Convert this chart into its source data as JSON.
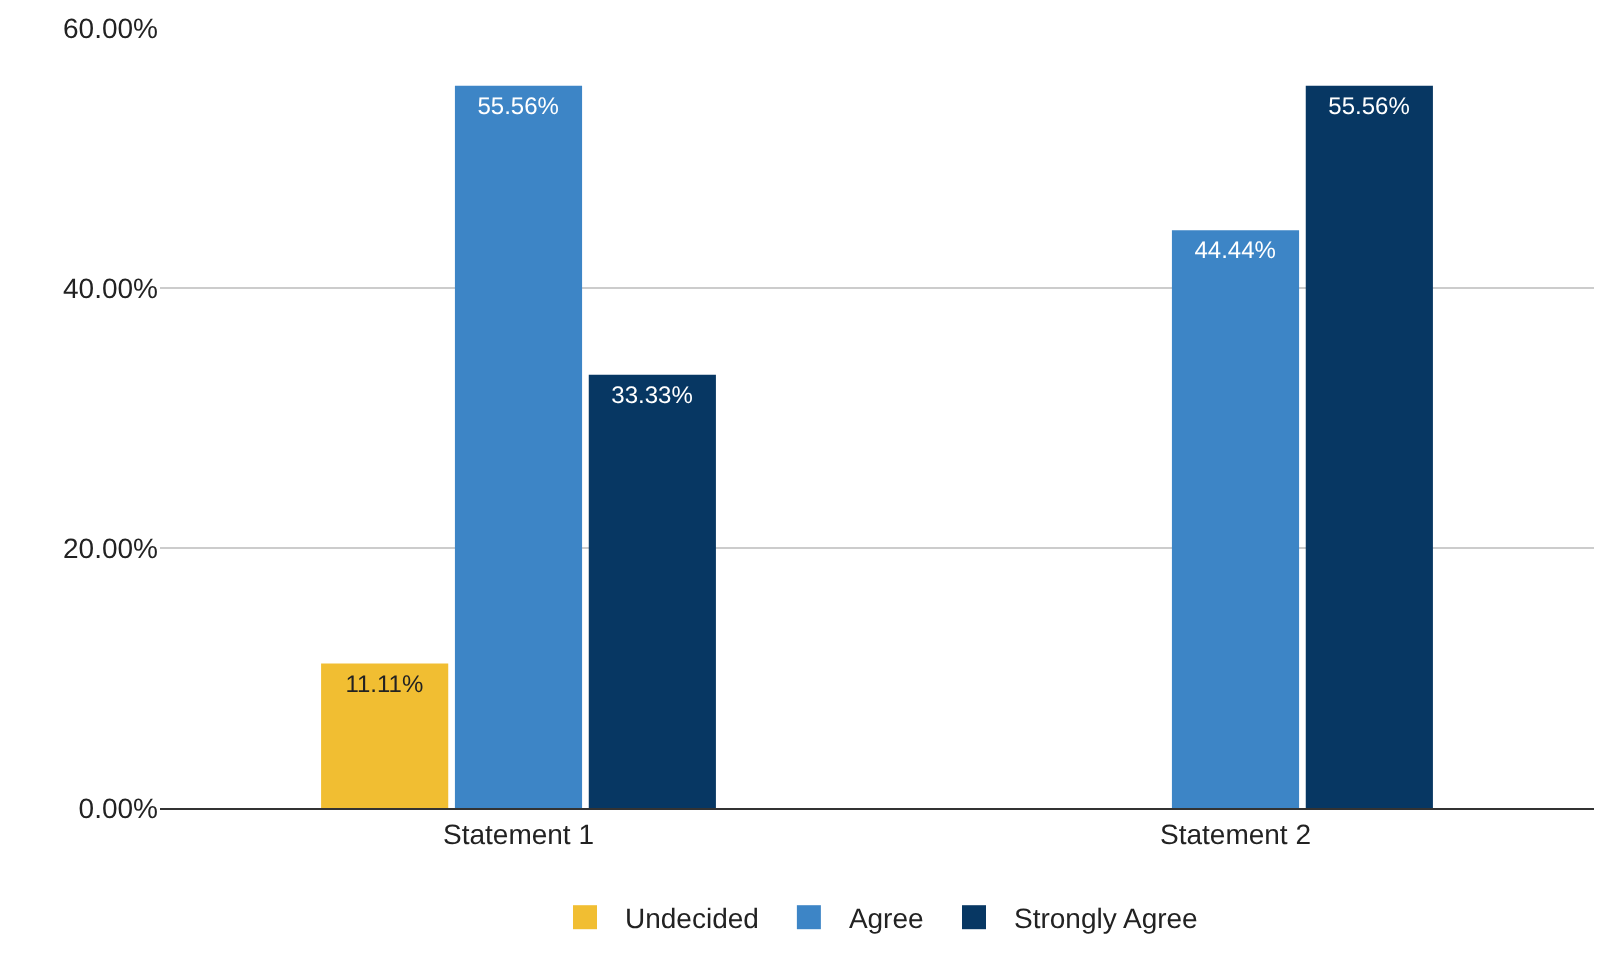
{
  "chart_data": {
    "type": "bar",
    "categories": [
      "Statement 1",
      "Statement 2"
    ],
    "series": [
      {
        "name": "Undecided",
        "color": "#f1be32",
        "values": [
          11.11,
          null
        ],
        "value_labels": [
          "11.11%",
          null
        ]
      },
      {
        "name": "Agree",
        "color": "#3d85c6",
        "values": [
          55.56,
          44.44
        ],
        "value_labels": [
          "55.56%",
          "44.44%"
        ]
      },
      {
        "name": "Strongly Agree",
        "color": "#073763",
        "values": [
          33.33,
          55.56
        ],
        "value_labels": [
          "33.33%",
          "55.56%"
        ]
      }
    ],
    "ylim": [
      0,
      60
    ],
    "yticks": [
      {
        "value": 0,
        "label": "0.00%"
      },
      {
        "value": 20,
        "label": "20.00%"
      },
      {
        "value": 40,
        "label": "40.00%"
      },
      {
        "value": 60,
        "label": "60.00%"
      }
    ],
    "grid": "y",
    "legend": "bottom"
  }
}
